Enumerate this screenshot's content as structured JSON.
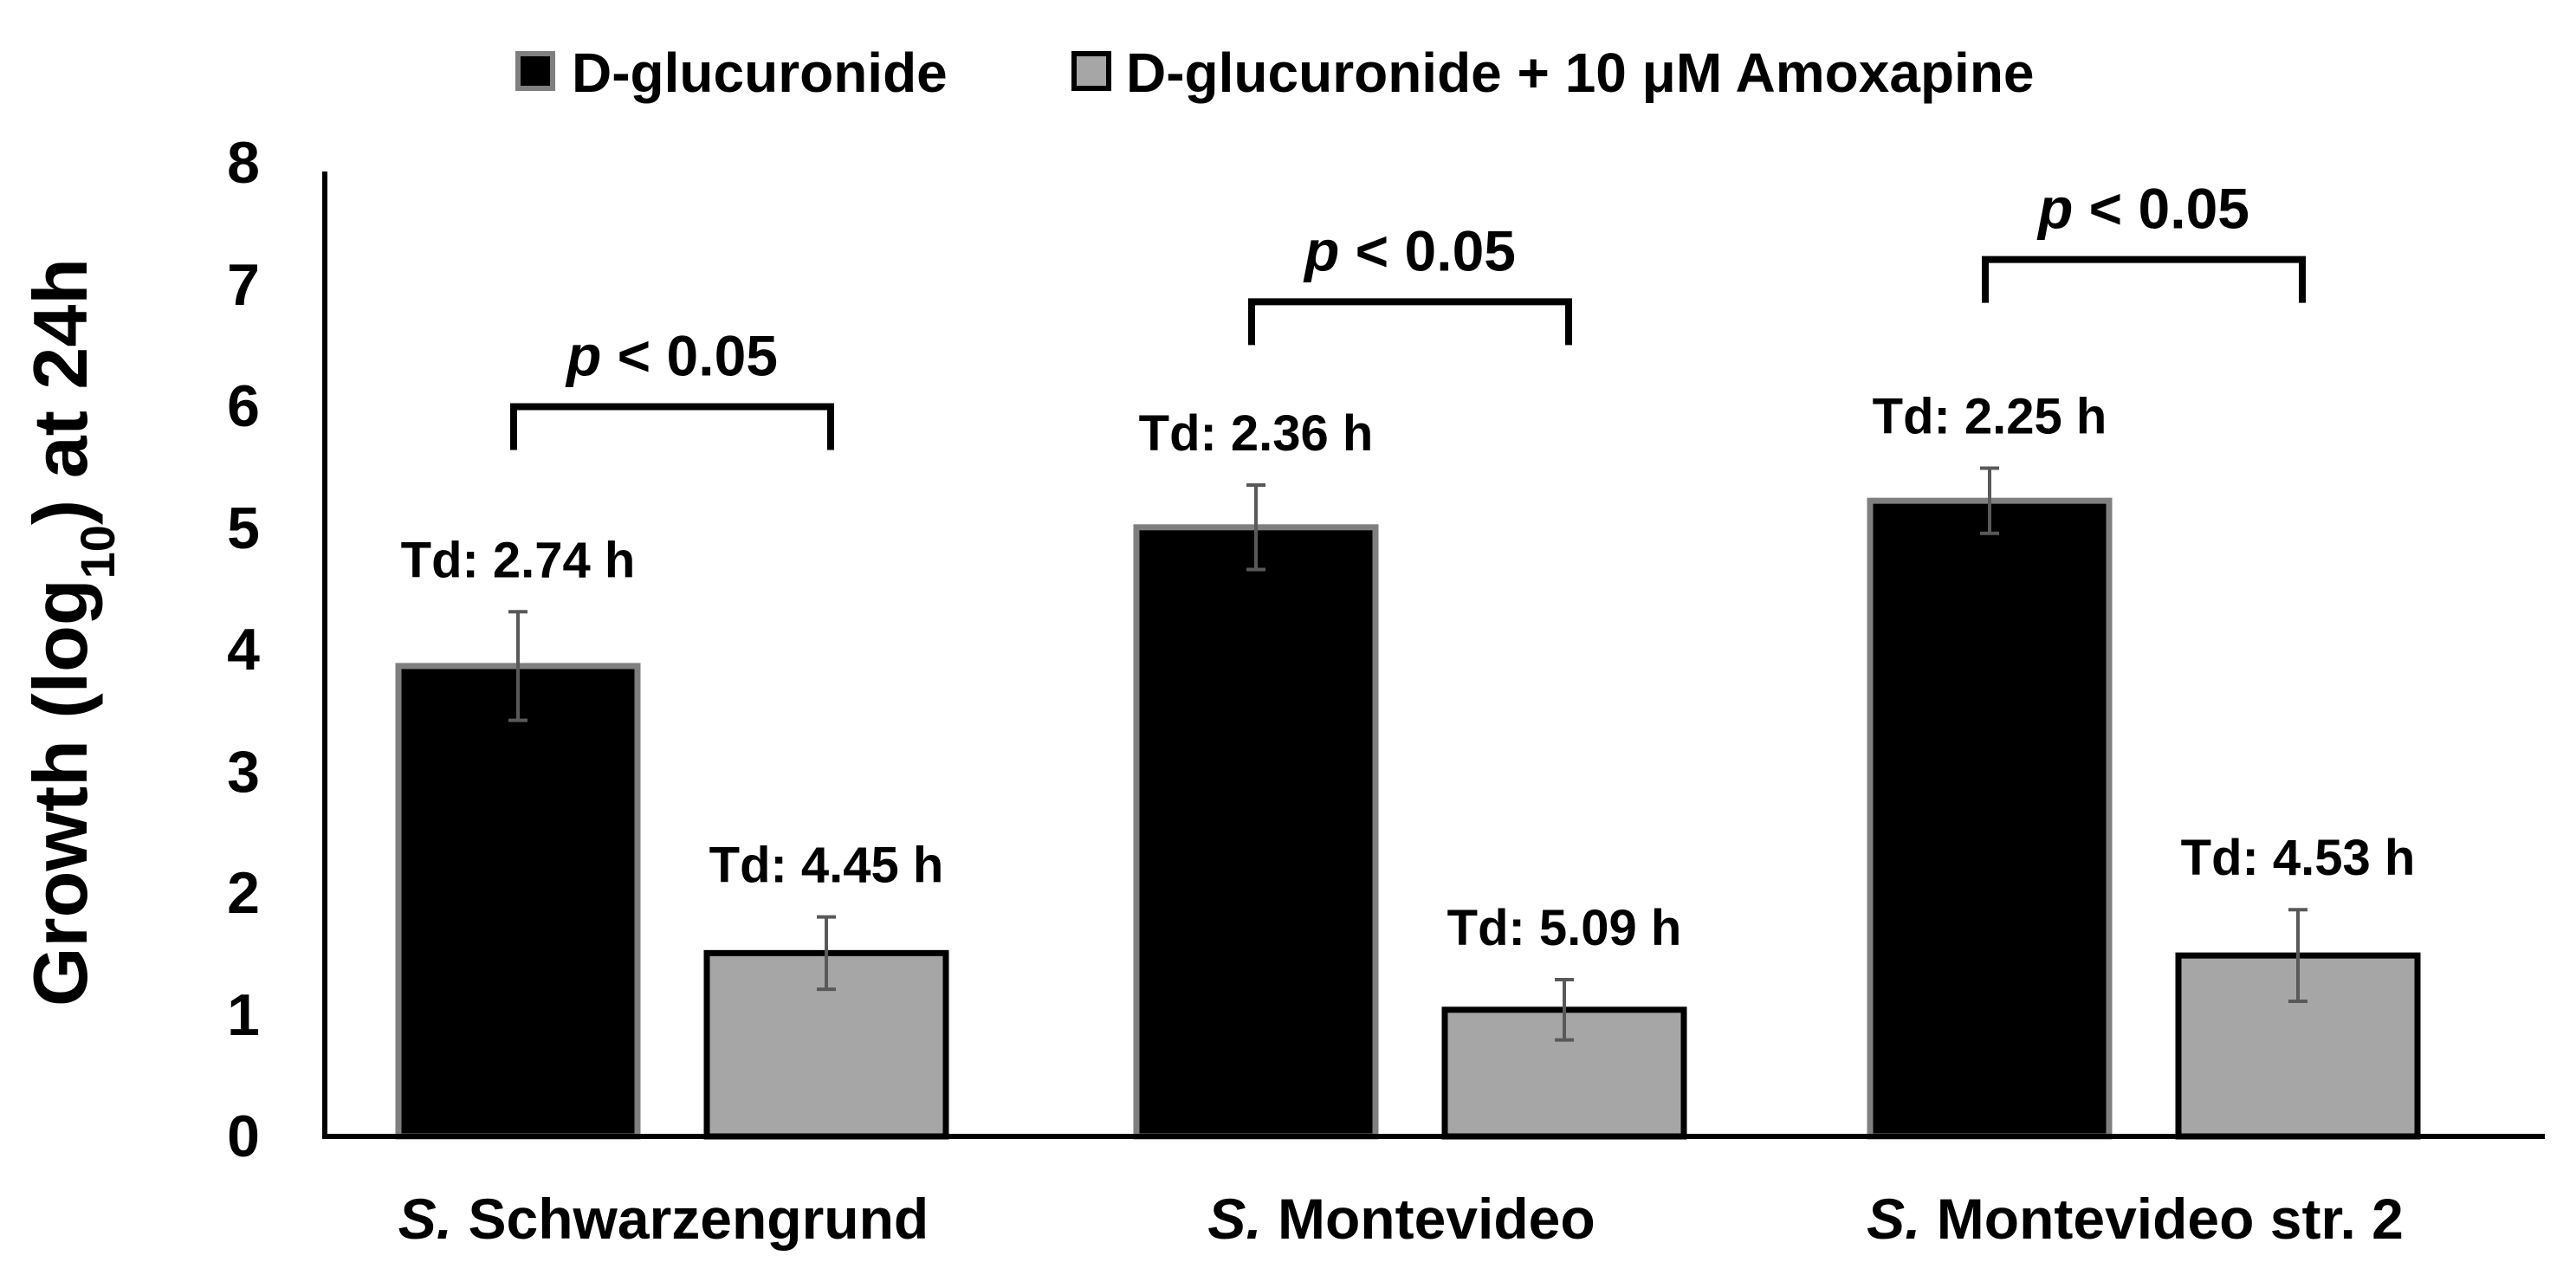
{
  "chart_data": {
    "type": "bar",
    "ylabel": "Growth (log10) at 24h",
    "ylabel_parts": [
      "Growth (log",
      "10",
      ") at 24h"
    ],
    "ylim": [
      0,
      8
    ],
    "yticks": [
      "0",
      "1",
      "2",
      "3",
      "4",
      "5",
      "6",
      "7",
      "8"
    ],
    "grid": false,
    "legend_position": "top",
    "categories": [
      {
        "prefix": "S.",
        "name": " Schwarzengrund"
      },
      {
        "prefix": "S.",
        "name": " Montevideo"
      },
      {
        "prefix": "S.",
        "name": " Montevideo str. 2"
      }
    ],
    "series": [
      {
        "name": "D-glucuronide",
        "color": "#000000",
        "values": [
          3.9,
          5.05,
          5.27
        ],
        "errors": [
          0.45,
          0.35,
          0.27
        ],
        "annotations": [
          "Td: 2.74 h",
          "Td: 2.36 h",
          "Td: 2.25 h"
        ]
      },
      {
        "name": "D-glucuronide + 10 μM Amoxapine",
        "color": "#a6a6a6",
        "values": [
          1.52,
          1.05,
          1.5
        ],
        "errors": [
          0.3,
          0.25,
          0.38
        ],
        "annotations": [
          "Td: 4.45 h",
          "Td: 5.09 h",
          "Td: 4.53 h"
        ]
      }
    ],
    "significance": [
      {
        "italic": "p",
        "text": " < 0.05",
        "height": 6.05
      },
      {
        "italic": "p",
        "text": " < 0.05",
        "height": 6.92
      },
      {
        "italic": "p",
        "text": " < 0.05",
        "height": 7.27
      }
    ]
  }
}
